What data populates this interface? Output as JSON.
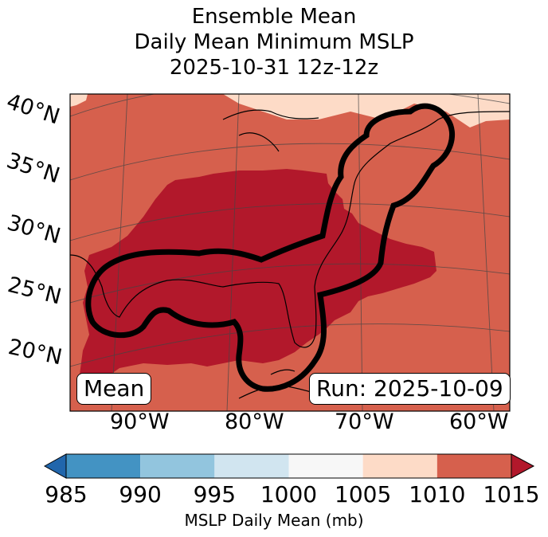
{
  "title": {
    "line1": "Ensemble Mean",
    "line2": "Daily Mean Minimum MSLP",
    "line3": "2025-10-31 12z-12z"
  },
  "map": {
    "lat_labels": [
      "40°N",
      "35°N",
      "30°N",
      "25°N",
      "20°N"
    ],
    "lon_labels": [
      "90°W",
      "80°W",
      "70°W",
      "60°W"
    ],
    "left_box": "Mean",
    "right_box": "Run: 2025-10-09",
    "colors": {
      "dark_red": "#b2182b",
      "red": "#d6604d",
      "peach": "#fddbc7",
      "contour": "#000000"
    }
  },
  "colorbar": {
    "caption": "MSLP Daily Mean (mb)",
    "ticks": [
      "985",
      "990",
      "995",
      "1000",
      "1005",
      "1010",
      "1015"
    ],
    "bins": [
      {
        "from": 985,
        "to": 990,
        "color": "#4393c3"
      },
      {
        "from": 990,
        "to": 995,
        "color": "#92c5de"
      },
      {
        "from": 995,
        "to": 1000,
        "color": "#d1e5f0"
      },
      {
        "from": 1000,
        "to": 1005,
        "color": "#f7f7f7"
      },
      {
        "from": 1005,
        "to": 1010,
        "color": "#fddbc7"
      },
      {
        "from": 1010,
        "to": 1015,
        "color": "#d6604d"
      }
    ],
    "under_color": "#2166ac",
    "over_color": "#b2182b"
  }
}
